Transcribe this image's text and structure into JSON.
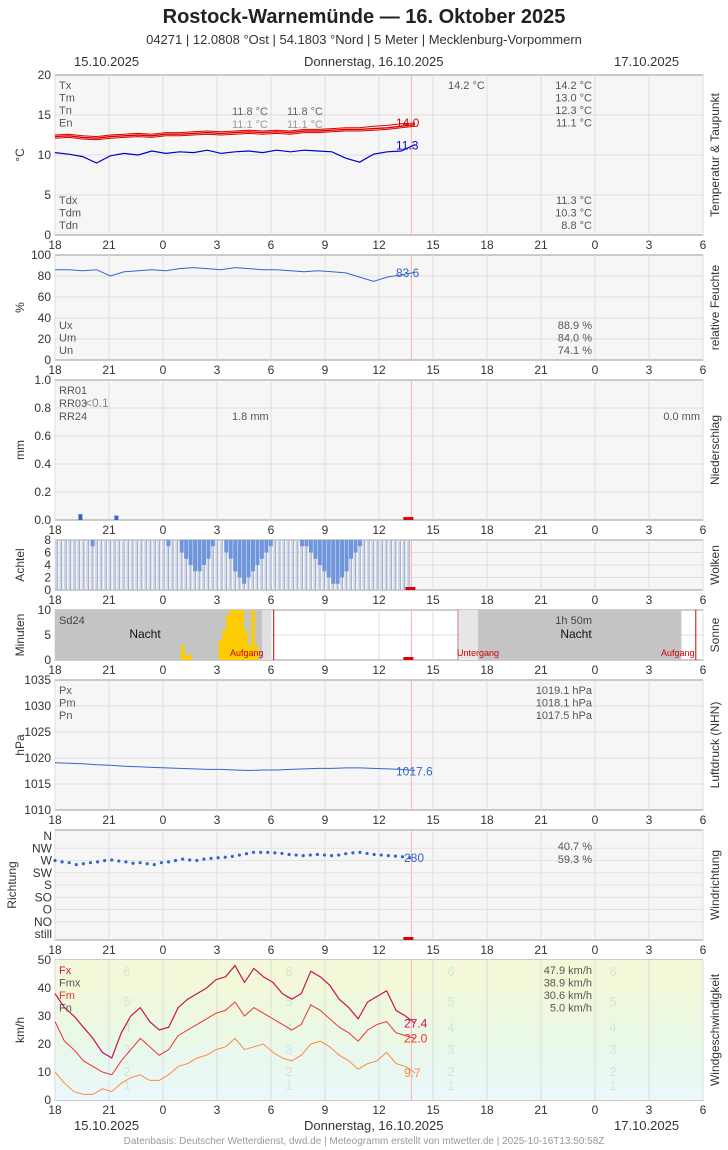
{
  "header": {
    "title": "Rostock-Warnemünde  —  16. Oktober 2025",
    "subtitle": "04271  |  12.0808 °Ost  |  54.1803 °Nord  |  5 Meter  |  Mecklenburg-Vorpommern",
    "date_left": "15.10.2025",
    "date_center": "Donnerstag, 16.10.2025",
    "date_right": "17.10.2025"
  },
  "footer": "Datenbasis: Deutscher Wetterdienst, dwd.de | Meteogramm erstellt von mtwetter.de | 2025-10-16T13:50:58Z",
  "colors": {
    "temp": "#dd0000",
    "dew": "#0000cc",
    "blue": "#3366cc",
    "sun": "#ffcc00",
    "gust": "#cc1155",
    "mean": "#ee3333",
    "wind": "#ff8844",
    "now": "#ffb0b0"
  },
  "chart_data": [
    {
      "type": "line",
      "title": "Temperatur & Taupunkt",
      "ylabel": "°C",
      "ylim": [
        0,
        20
      ],
      "yticks": [
        "0",
        "5",
        "10",
        "15",
        "20"
      ],
      "x_tick_labels": [
        "18",
        "21",
        "0",
        "3",
        "6",
        "9",
        "12",
        "15",
        "18",
        "21",
        "0",
        "3",
        "6"
      ],
      "series": [
        {
          "name": "Tx",
          "values": [
            12.5,
            12.6,
            12.4,
            12.3,
            12.5,
            12.6,
            12.7,
            12.6,
            12.8,
            12.8,
            12.9,
            13.0,
            12.9,
            13.0,
            13.1,
            13.0,
            13.1,
            13.0,
            13.2,
            13.2,
            13.3,
            13.4,
            13.4,
            13.6,
            13.7,
            13.9,
            14.0
          ]
        },
        {
          "name": "Tm",
          "values": [
            12.3,
            12.4,
            12.2,
            12.1,
            12.3,
            12.4,
            12.5,
            12.4,
            12.6,
            12.6,
            12.7,
            12.8,
            12.7,
            12.8,
            12.9,
            12.8,
            12.9,
            12.8,
            13.0,
            13.0,
            13.1,
            13.2,
            13.2,
            13.3,
            13.4,
            13.6,
            13.8
          ]
        },
        {
          "name": "Tn",
          "values": [
            12.1,
            12.2,
            12.0,
            11.9,
            12.1,
            12.2,
            12.3,
            12.2,
            12.4,
            12.4,
            12.5,
            12.6,
            12.5,
            12.6,
            12.7,
            12.6,
            12.7,
            12.6,
            12.8,
            12.8,
            12.9,
            13.0,
            13.0,
            13.1,
            13.2,
            13.4,
            13.6
          ]
        },
        {
          "name": "Td",
          "values": [
            10.3,
            10.1,
            9.8,
            9.0,
            9.9,
            10.2,
            10.0,
            10.5,
            10.2,
            10.4,
            10.3,
            10.6,
            10.2,
            10.4,
            10.5,
            10.3,
            10.6,
            10.4,
            10.6,
            10.5,
            10.4,
            9.6,
            9.1,
            10.1,
            10.4,
            10.5,
            11.3
          ]
        }
      ],
      "last_labels": {
        "temp": "14.0",
        "dew": "11.3"
      },
      "stats_left": [
        {
          "key": "Tx",
          "value": "14.2 °C"
        },
        {
          "key": "Tm",
          "value": "13.0 °C"
        },
        {
          "key": "Tn",
          "value": "12.3 °C"
        },
        {
          "key": "En",
          "value": "11.1 °C"
        }
      ],
      "stats_left_bottom": [
        {
          "key": "Tdx",
          "value": "11.3 °C"
        },
        {
          "key": "Tdm",
          "value": "10.3 °C"
        },
        {
          "key": "Tdn",
          "value": "8.8 °C"
        }
      ],
      "mid_values": [
        {
          "t1": "11.8 °C",
          "t2": "11.8 °C"
        },
        {
          "t1": "11.1 °C",
          "t2": "11.1 °C"
        }
      ],
      "extra_value": "14.2 °C"
    },
    {
      "type": "line",
      "title": "relative Feuchte",
      "ylabel": "%",
      "ylim": [
        0,
        100
      ],
      "yticks": [
        "0",
        "20",
        "40",
        "60",
        "80",
        "100"
      ],
      "x_tick_labels": [
        "18",
        "21",
        "0",
        "3",
        "6",
        "9",
        "12",
        "15",
        "18",
        "21",
        "0",
        "3",
        "6"
      ],
      "series": [
        {
          "name": "U",
          "values": [
            86,
            86,
            85,
            86,
            80,
            84,
            85,
            86,
            85,
            87,
            88,
            87,
            86,
            88,
            87,
            86,
            86,
            85,
            84,
            85,
            84,
            83,
            79,
            75,
            79,
            81,
            83.6
          ]
        }
      ],
      "last_label": "83.6",
      "stats": [
        {
          "key": "Ux",
          "value": "88.9 %"
        },
        {
          "key": "Um",
          "value": "84.0 %"
        },
        {
          "key": "Un",
          "value": "74.1 %"
        }
      ]
    },
    {
      "type": "bar",
      "title": "Niederschlag",
      "ylabel": "mm",
      "ylim": [
        0,
        1.0
      ],
      "yticks": [
        "0.0",
        "0.2",
        "0.4",
        "0.6",
        "0.8",
        "1.0"
      ],
      "x_tick_labels": [
        "18",
        "21",
        "0",
        "3",
        "6",
        "9",
        "12",
        "15",
        "18",
        "21",
        "0",
        "3",
        "6"
      ],
      "bars": [
        {
          "h": 1.3,
          "v": 0.02
        },
        {
          "h": 3.3,
          "v": 0.01
        }
      ],
      "labels": {
        "rr01": "RR01",
        "rr03": "RR03",
        "rr03_value": "<0.1",
        "rr24": "RR24",
        "rr24_value": "1.8 mm",
        "right_value": "0.0 mm"
      }
    },
    {
      "type": "bar",
      "title": "Wolken",
      "ylabel": "Achtel",
      "ylim": [
        0,
        8
      ],
      "yticks": [
        "0",
        "2",
        "4",
        "6",
        "8"
      ],
      "x_tick_labels": [
        "18",
        "21",
        "0",
        "3",
        "6",
        "9",
        "12",
        "15",
        "18",
        "21",
        "0",
        "3",
        "6"
      ],
      "cover": [
        8,
        8,
        8,
        8,
        8,
        8,
        8,
        8,
        7,
        8,
        8,
        8,
        8,
        8,
        8,
        8,
        8,
        8,
        8,
        8,
        8,
        8,
        8,
        8,
        8,
        7,
        8,
        8,
        6,
        5,
        4,
        3,
        3,
        4,
        5,
        7,
        8,
        8,
        6,
        5,
        3,
        2,
        1,
        2,
        3,
        4,
        5,
        6,
        7,
        8,
        8,
        8,
        8,
        8,
        8,
        7,
        7,
        6,
        5,
        4,
        3,
        2,
        1,
        1,
        2,
        3,
        5,
        6,
        7,
        8,
        8,
        8,
        8,
        8,
        8,
        8,
        8,
        8,
        8,
        8
      ]
    },
    {
      "type": "bar",
      "title": "Sonne",
      "ylabel": "Minuten",
      "ylim": [
        0,
        10
      ],
      "yticks": [
        "0",
        "5",
        "10"
      ],
      "x_tick_labels": [
        "18",
        "21",
        "0",
        "3",
        "6",
        "9",
        "12",
        "15",
        "18",
        "21",
        "0",
        "3",
        "6"
      ],
      "sun_bars": [
        {
          "h": 7.0,
          "v": 3
        },
        {
          "h": 7.2,
          "v": 1
        },
        {
          "h": 7.4,
          "v": 1
        },
        {
          "h": 9.1,
          "v": 4
        },
        {
          "h": 9.3,
          "v": 6
        },
        {
          "h": 9.5,
          "v": 9
        },
        {
          "h": 9.7,
          "v": 10
        },
        {
          "h": 9.9,
          "v": 10
        },
        {
          "h": 10.1,
          "v": 10
        },
        {
          "h": 10.3,
          "v": 10
        },
        {
          "h": 10.5,
          "v": 6
        },
        {
          "h": 10.7,
          "v": 3
        },
        {
          "h": 10.9,
          "v": 10
        },
        {
          "h": 11.1,
          "v": 3
        }
      ],
      "labels": {
        "sd24": "Sd24",
        "night": "Nacht",
        "sunrise": "Aufgang",
        "sunset": "Untergang",
        "duration": "1h 50m"
      }
    },
    {
      "type": "line",
      "title": "Luftdruck (NHN)",
      "ylabel": "hPa",
      "ylim": [
        1010,
        1035
      ],
      "yticks": [
        "1010",
        "1015",
        "1020",
        "1025",
        "1030",
        "1035"
      ],
      "x_tick_labels": [
        "18",
        "21",
        "0",
        "3",
        "6",
        "9",
        "12",
        "15",
        "18",
        "21",
        "0",
        "3",
        "6"
      ],
      "series": [
        {
          "name": "P",
          "values": [
            1019.1,
            1019.0,
            1018.9,
            1018.7,
            1018.6,
            1018.4,
            1018.3,
            1018.2,
            1018.1,
            1018.0,
            1017.9,
            1017.8,
            1017.8,
            1017.7,
            1017.6,
            1017.7,
            1017.7,
            1017.8,
            1017.9,
            1018.0,
            1018.0,
            1018.1,
            1018.1,
            1018.0,
            1017.9,
            1017.8,
            1017.6
          ]
        }
      ],
      "last_label": "1017.6",
      "stats": [
        {
          "key": "Px",
          "value": "1019.1 hPa"
        },
        {
          "key": "Pm",
          "value": "1018.1 hPa"
        },
        {
          "key": "Pn",
          "value": "1017.5 hPa"
        }
      ]
    },
    {
      "type": "scatter",
      "title": "Windrichtung",
      "ylabel": "Richtung",
      "categories": [
        "N",
        "NW",
        "W",
        "SW",
        "S",
        "SO",
        "O",
        "NO",
        "still"
      ],
      "x_tick_labels": [
        "18",
        "21",
        "0",
        "3",
        "6",
        "9",
        "12",
        "15",
        "18",
        "21",
        "0",
        "3",
        "6"
      ],
      "directions": [
        270,
        265,
        262,
        255,
        258,
        262,
        265,
        270,
        272,
        268,
        265,
        260,
        262,
        258,
        255,
        262,
        265,
        270,
        275,
        272,
        270,
        275,
        278,
        280,
        282,
        285,
        290,
        295,
        300,
        300,
        300,
        298,
        296,
        292,
        290,
        288,
        290,
        292,
        290,
        288,
        290,
        295,
        298,
        300,
        296,
        292,
        290,
        288,
        286,
        284,
        280
      ],
      "last_label": "280",
      "stats": [
        "40.7 %",
        "59.3 %"
      ]
    },
    {
      "type": "line",
      "title": "Windgeschwindigkeit",
      "ylabel": "km/h",
      "ylim": [
        0,
        50
      ],
      "yticks": [
        "0",
        "10",
        "20",
        "30",
        "40",
        "50"
      ],
      "x_tick_labels": [
        "18",
        "21",
        "0",
        "3",
        "6",
        "9",
        "12",
        "15",
        "18",
        "21",
        "0",
        "3",
        "6"
      ],
      "series": [
        {
          "name": "Fx",
          "values": [
            38,
            33,
            30,
            26,
            22,
            17,
            15,
            24,
            30,
            33,
            28,
            25,
            26,
            33,
            36,
            38,
            40,
            43,
            44,
            48,
            42,
            47,
            44,
            42,
            38,
            36,
            38,
            46,
            44,
            41,
            36,
            33,
            29,
            35,
            37,
            39,
            32,
            30,
            27.4
          ]
        },
        {
          "name": "Fmx",
          "values": [
            28,
            21,
            18,
            14,
            12,
            10,
            9,
            14,
            18,
            22,
            19,
            16,
            18,
            23,
            25,
            27,
            29,
            31,
            32,
            35,
            30,
            33,
            31,
            29,
            27,
            25,
            27,
            34,
            32,
            29,
            26,
            24,
            21,
            25,
            27,
            28,
            24,
            23,
            22.0
          ]
        },
        {
          "name": "Fm",
          "values": [
            10,
            6,
            3,
            2,
            2,
            4,
            3,
            6,
            8,
            9,
            7,
            7,
            9,
            12,
            13,
            15,
            16,
            18,
            19,
            22,
            18,
            19,
            20,
            17,
            15,
            14,
            16,
            20,
            21,
            19,
            16,
            14,
            11,
            13,
            14,
            17,
            13,
            12,
            9.7
          ]
        }
      ],
      "last_labels": {
        "gust": "27.4",
        "max": "22.0",
        "mean": "9.7"
      },
      "stats": [
        {
          "key": "Fx",
          "value": "47.9 km/h"
        },
        {
          "key": "Fmx",
          "value": "38.9 km/h"
        },
        {
          "key": "Fm",
          "value": "30.6 km/h"
        },
        {
          "key": "Fn",
          "value": "5.0 km/h"
        }
      ],
      "beaufort": [
        "1",
        "2",
        "3",
        "4",
        "5",
        "6"
      ]
    }
  ]
}
